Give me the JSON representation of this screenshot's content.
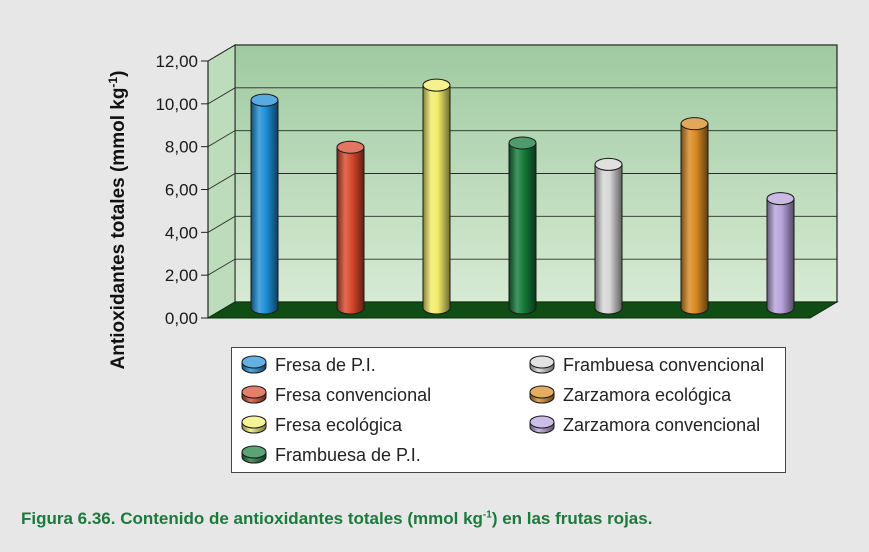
{
  "chart_data": {
    "type": "bar",
    "ylabel_main": "Antioxidantes totales (mmol kg",
    "ylabel_sup": "-1",
    "ylabel_end": ")",
    "ylim": [
      0,
      12
    ],
    "yticks": [
      "0,00",
      "2,00",
      "4,00",
      "6,00",
      "8,00",
      "10,00",
      "12,00"
    ],
    "grid": true,
    "legend_position": "bottom",
    "categories": [
      "Fresa de P.I.",
      "Fresa convencional",
      "Fresa ecológica",
      "Frambuesa de P.I.",
      "Frambuesa convencional",
      "Zarzamora ecológica",
      "Zarzamora convencional"
    ],
    "values": [
      9.8,
      7.6,
      10.5,
      7.8,
      6.8,
      8.7,
      5.2
    ],
    "colors": [
      "#1f8fd6",
      "#d9482b",
      "#f2ec6a",
      "#157a3a",
      "#d6d6d6",
      "#d98a22",
      "#b8a2dc"
    ],
    "legend_order": [
      0,
      4,
      1,
      5,
      2,
      6,
      3
    ],
    "plot_background": "#a9cfa9",
    "floor_color": "#0f4d14"
  },
  "caption": {
    "main": "Figura 6.36. Contenido de antioxidantes totales (mmol kg",
    "sup": "-1",
    "end": ") en las frutas rojas."
  }
}
